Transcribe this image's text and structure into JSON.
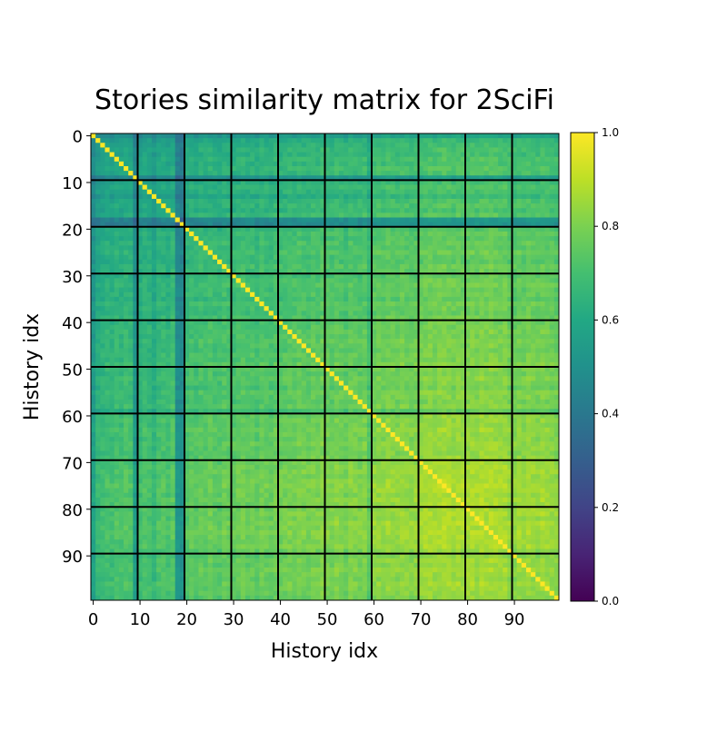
{
  "chart_data": {
    "type": "heatmap",
    "title": "Stories similarity matrix for 2SciFi",
    "xlabel": "History idx",
    "ylabel": "History idx",
    "size": 100,
    "xticks": [
      0,
      10,
      20,
      30,
      40,
      50,
      60,
      70,
      80,
      90
    ],
    "yticks": [
      0,
      10,
      20,
      30,
      40,
      50,
      60,
      70,
      80,
      90
    ],
    "xtick_labels": [
      "0",
      "10",
      "20",
      "30",
      "40",
      "50",
      "60",
      "70",
      "80",
      "90"
    ],
    "ytick_labels": [
      "0",
      "10",
      "20",
      "30",
      "40",
      "50",
      "60",
      "70",
      "80",
      "90"
    ],
    "block_lines": [
      9.5,
      19.5,
      29.5,
      39.5,
      49.5,
      59.5,
      69.5,
      79.5,
      89.5
    ],
    "diagonal_value": 1.0,
    "colorbar": {
      "range": [
        0.0,
        1.0
      ],
      "ticks": [
        0.0,
        0.2,
        0.4,
        0.6,
        0.8,
        1.0
      ],
      "tick_labels": [
        "0.0",
        "0.2",
        "0.4",
        "0.6",
        "0.8",
        "1.0"
      ],
      "colormap": "viridis"
    },
    "row_base_levels": [
      0.39,
      0.52,
      0.55,
      0.58,
      0.56,
      0.6,
      0.58,
      0.62,
      0.6,
      0.36,
      0.55,
      0.6,
      0.58,
      0.52,
      0.6,
      0.62,
      0.58,
      0.64,
      0.32,
      0.3,
      0.62,
      0.66,
      0.64,
      0.68,
      0.66,
      0.7,
      0.66,
      0.64,
      0.7,
      0.68,
      0.66,
      0.7,
      0.72,
      0.68,
      0.7,
      0.66,
      0.72,
      0.7,
      0.68,
      0.72,
      0.7,
      0.72,
      0.74,
      0.72,
      0.76,
      0.74,
      0.72,
      0.76,
      0.74,
      0.78,
      0.76,
      0.74,
      0.78,
      0.76,
      0.72,
      0.78,
      0.76,
      0.74,
      0.78,
      0.66,
      0.8,
      0.82,
      0.8,
      0.84,
      0.82,
      0.8,
      0.84,
      0.82,
      0.8,
      0.82,
      0.84,
      0.86,
      0.88,
      0.86,
      0.88,
      0.9,
      0.88,
      0.86,
      0.88,
      0.86,
      0.86,
      0.88,
      0.86,
      0.9,
      0.88,
      0.9,
      0.88,
      0.86,
      0.88,
      0.82,
      0.8,
      0.84,
      0.82,
      0.86,
      0.84,
      0.82,
      0.86,
      0.84,
      0.82,
      0.8
    ]
  }
}
